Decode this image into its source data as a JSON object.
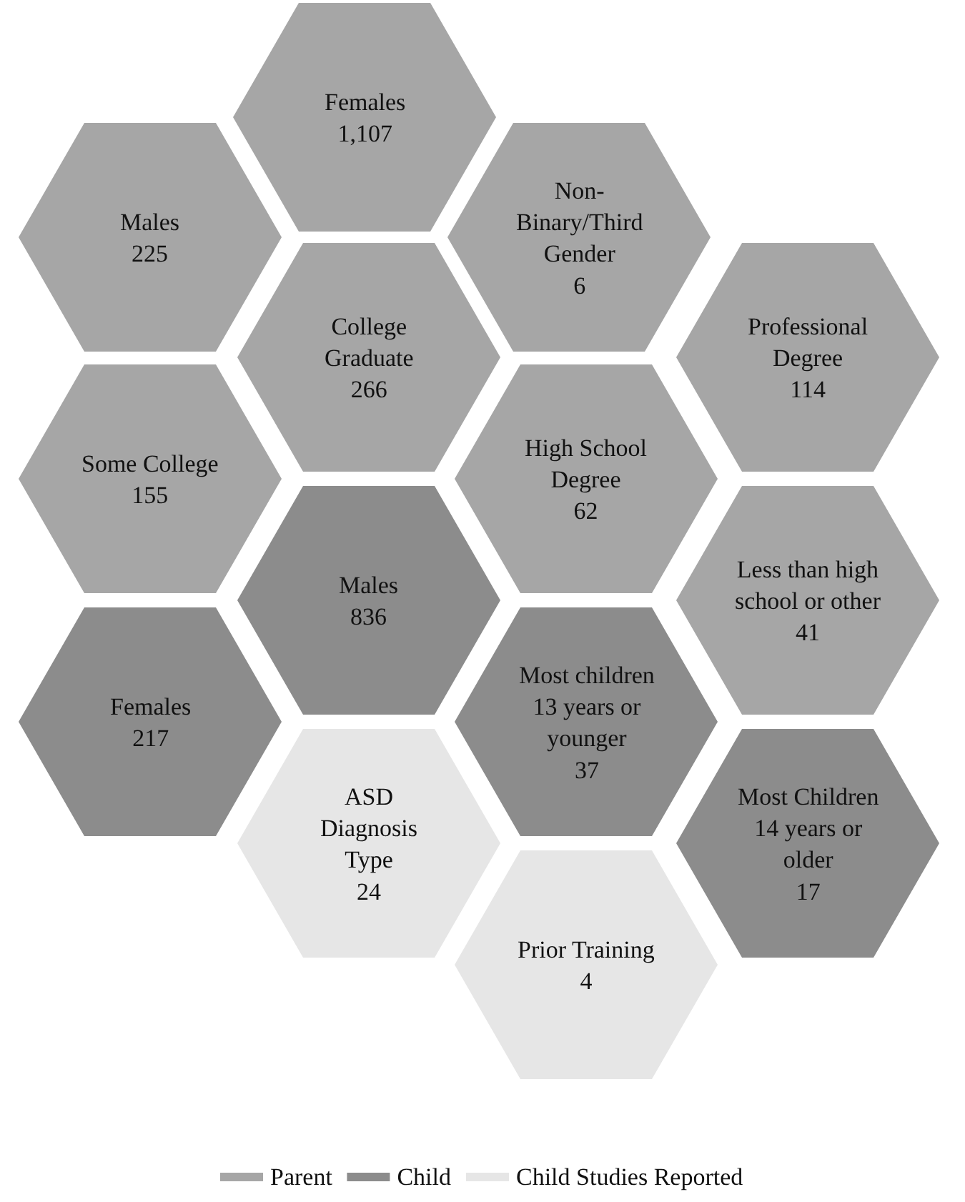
{
  "chart_data": {
    "type": "other",
    "categories": [
      "Females",
      "Males",
      "Non-\nBinary/Third\nGender",
      "College\nGraduate",
      "Professional\nDegree",
      "Some College",
      "High School\nDegree",
      "Males",
      "Less than high\nschool or other",
      "Females",
      "Most children\n13 years or\nyounger",
      "ASD\nDiagnosis\nType",
      "Most Children\n14 years or\nolder",
      "Prior Training"
    ],
    "series": [
      {
        "name": "Parent",
        "color": "#a6a6a6",
        "values": [
          1107,
          225,
          6,
          266,
          114,
          155,
          62,
          null,
          41,
          null,
          null,
          null,
          null,
          null
        ],
        "value_labels": [
          "1,107",
          "225",
          "6",
          "266",
          "114",
          "155",
          "62",
          null,
          "41",
          null,
          null,
          null,
          null,
          null
        ]
      },
      {
        "name": "Child",
        "color": "#8c8c8c",
        "values": [
          null,
          null,
          null,
          null,
          null,
          null,
          null,
          836,
          null,
          217,
          37,
          null,
          17,
          null
        ]
      },
      {
        "name": "Child Studies Reported",
        "color": "#e6e6e6",
        "values": [
          null,
          null,
          null,
          null,
          null,
          null,
          null,
          null,
          null,
          null,
          null,
          24,
          null,
          4
        ]
      }
    ],
    "data_labels": true,
    "legend": "bottom"
  }
}
